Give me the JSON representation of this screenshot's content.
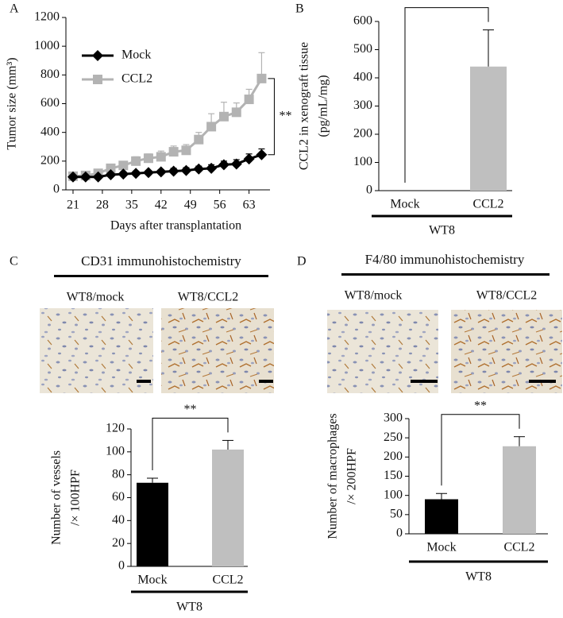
{
  "chart_data": [
    {
      "type": "line",
      "panel": "A",
      "xlabel": "Days after transplantation",
      "ylabel": [
        "Tumor size (mm³)"
      ],
      "x": [
        21,
        24,
        27,
        30,
        33,
        36,
        39,
        42,
        45,
        48,
        51,
        54,
        57,
        60,
        63,
        66
      ],
      "series": [
        {
          "name": "CCL2",
          "color": "#b3b3b3",
          "marker": "square",
          "values": [
            95,
            100,
            115,
            150,
            170,
            200,
            220,
            230,
            265,
            275,
            350,
            440,
            510,
            540,
            630,
            775
          ],
          "errors": [
            20,
            20,
            20,
            25,
            25,
            30,
            30,
            40,
            40,
            40,
            50,
            90,
            100,
            65,
            70,
            180
          ]
        },
        {
          "name": "Mock",
          "color": "#000000",
          "marker": "diamond",
          "values": [
            90,
            90,
            90,
            105,
            110,
            115,
            120,
            125,
            130,
            135,
            145,
            150,
            175,
            180,
            215,
            245
          ],
          "errors": [
            10,
            10,
            10,
            15,
            15,
            15,
            15,
            15,
            20,
            20,
            20,
            25,
            25,
            30,
            35,
            40
          ]
        }
      ],
      "xlim": [
        19.3,
        68
      ],
      "xticks": [
        21,
        28,
        35,
        42,
        49,
        56,
        63
      ],
      "ylim": [
        0,
        1200
      ],
      "yticks": [
        0,
        200,
        400,
        600,
        800,
        1000,
        1200
      ],
      "legend": "upper left",
      "annotation": "**"
    },
    {
      "type": "bar",
      "panel": "B",
      "ylabel": [
        "CCL2 in xenograft tissue",
        "(pg/mL/mg)"
      ],
      "categories": [
        "Mock",
        "CCL2"
      ],
      "values": [
        0,
        440
      ],
      "errors": [
        null,
        130
      ],
      "colors": [
        "#000000",
        "#bfbfbf"
      ],
      "ylim": [
        0,
        600
      ],
      "yticks": [
        0,
        100,
        200,
        300,
        400,
        500,
        600
      ],
      "group_label": "WT8",
      "annotation": "**"
    },
    {
      "type": "bar",
      "panel": "C",
      "header": "CD31 immunohistochemistry",
      "image_labels": [
        "WT8/mock",
        "WT8/CCL2"
      ],
      "ylabel": [
        "Number of vessels",
        "/× 100HPF"
      ],
      "categories": [
        "Mock",
        "CCL2"
      ],
      "values": [
        73,
        102
      ],
      "errors": [
        4,
        8
      ],
      "colors": [
        "#000000",
        "#bfbfbf"
      ],
      "ylim": [
        0,
        120
      ],
      "yticks": [
        0,
        20,
        40,
        60,
        80,
        100,
        120
      ],
      "group_label": "WT8",
      "annotation": "**"
    },
    {
      "type": "bar",
      "panel": "D",
      "header": "F4/80 immunohistochemistry",
      "image_labels": [
        "WT8/mock",
        "WT8/CCL2"
      ],
      "ylabel": [
        "Number of macrophages",
        "/× 200HPF"
      ],
      "categories": [
        "Mock",
        "CCL2"
      ],
      "values": [
        90,
        228
      ],
      "errors": [
        15,
        25
      ],
      "colors": [
        "#000000",
        "#bfbfbf"
      ],
      "ylim": [
        0,
        300
      ],
      "yticks": [
        0,
        50,
        100,
        150,
        200,
        250,
        300
      ],
      "group_label": "WT8",
      "annotation": "**"
    }
  ]
}
